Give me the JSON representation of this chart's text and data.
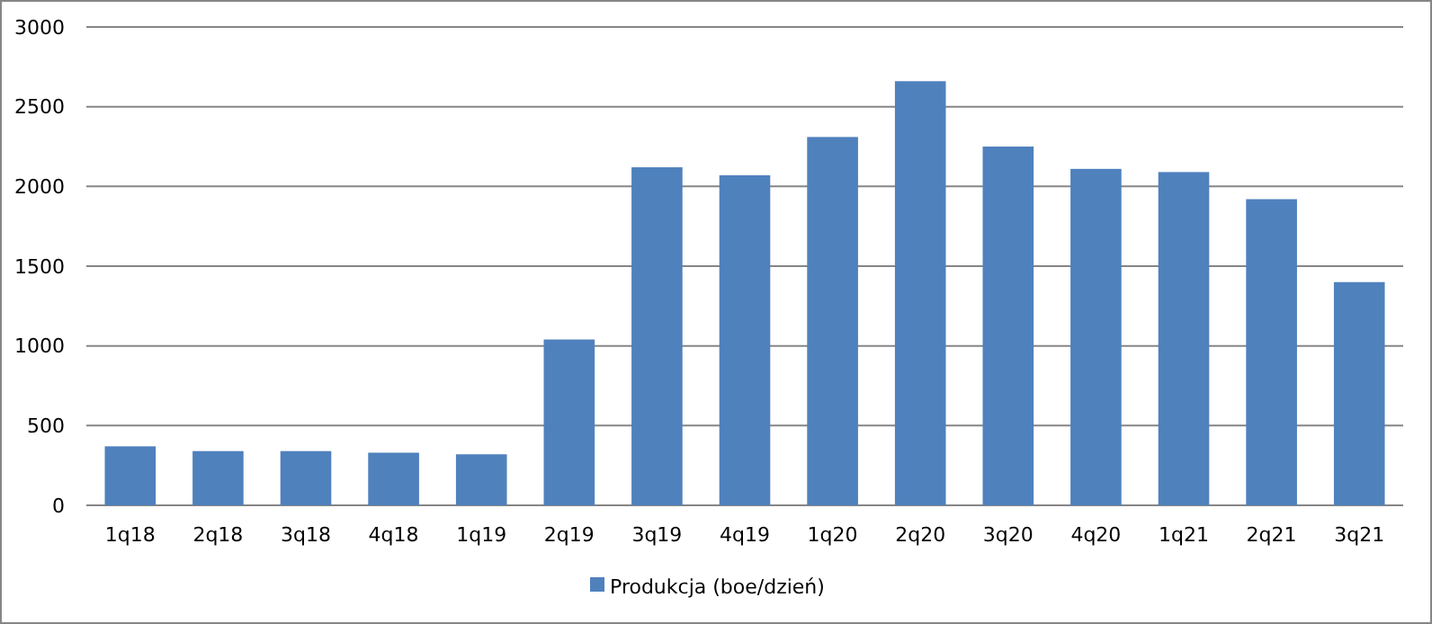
{
  "chart_data": {
    "type": "bar",
    "categories": [
      "1q18",
      "2q18",
      "3q18",
      "4q18",
      "1q19",
      "2q19",
      "3q19",
      "4q19",
      "1q20",
      "2q20",
      "3q20",
      "4q20",
      "1q21",
      "2q21",
      "3q21"
    ],
    "series": [
      {
        "name": "Produkcja (boe/dzień)",
        "color": "#4f81bd",
        "values": [
          370,
          340,
          340,
          330,
          320,
          1040,
          2120,
          2070,
          2310,
          2660,
          2250,
          2110,
          2090,
          1920,
          1400
        ]
      }
    ],
    "ylim": [
      0,
      3000
    ],
    "yticks": [
      0,
      500,
      1000,
      1500,
      2000,
      2500,
      3000
    ],
    "grid": "y",
    "legend": "bottom"
  }
}
